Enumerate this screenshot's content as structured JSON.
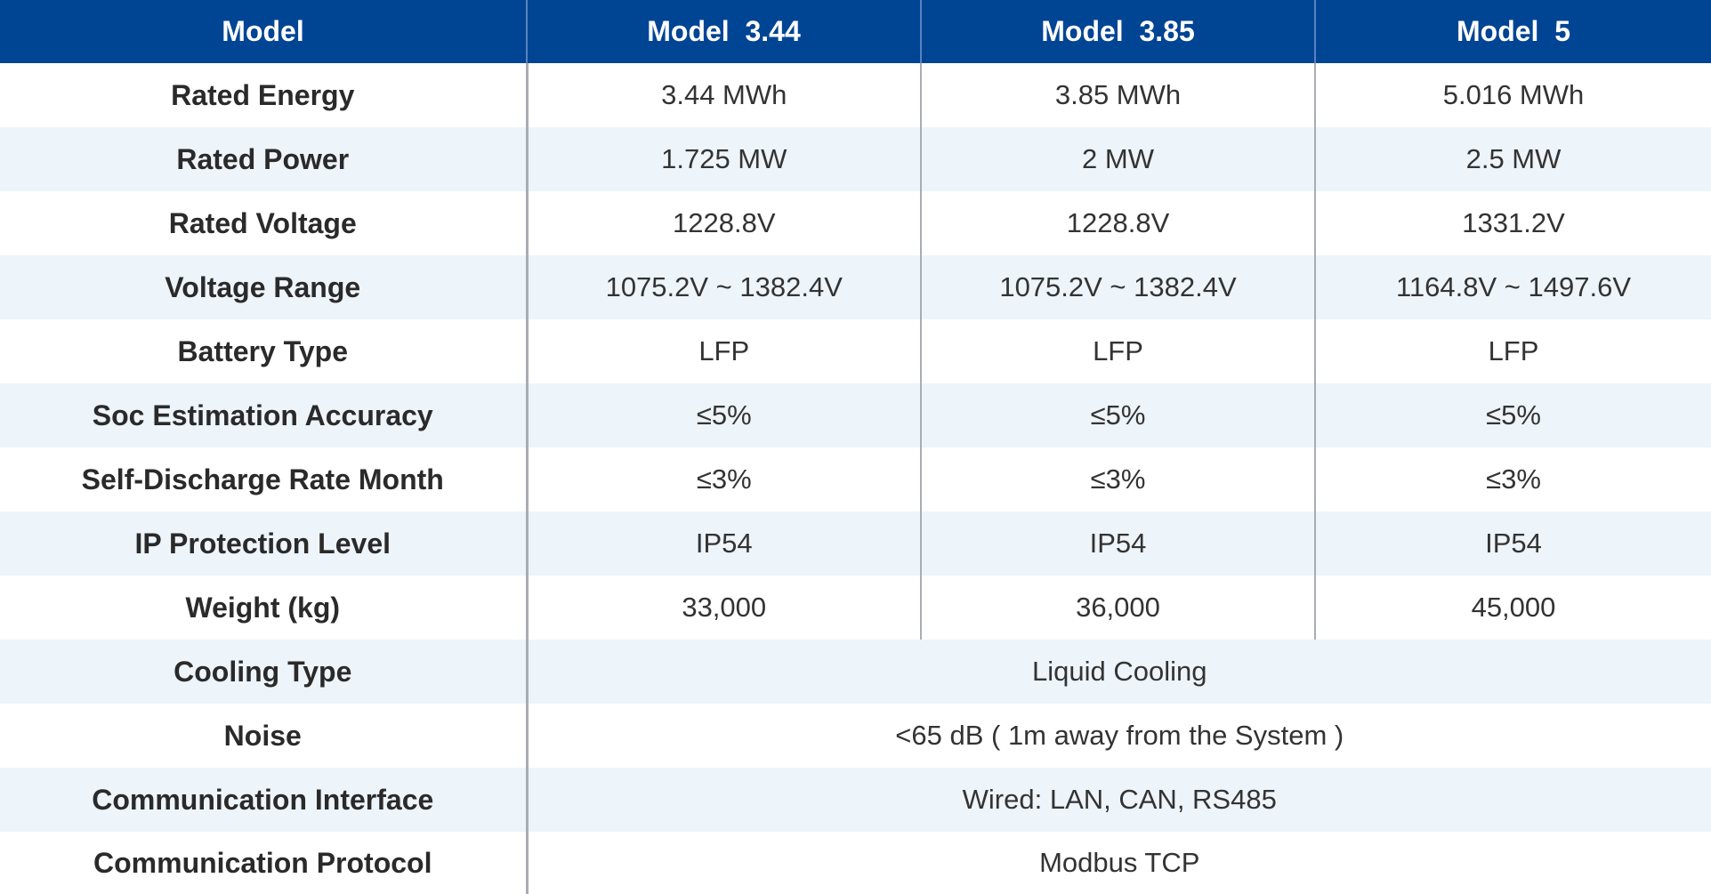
{
  "header": {
    "label": "Model",
    "models": [
      "Model  3.44",
      "Model  3.85",
      "Model  5"
    ]
  },
  "rows": [
    {
      "label": "Rated Energy",
      "values": [
        "3.44 MWh",
        "3.85 MWh",
        "5.016 MWh"
      ]
    },
    {
      "label": "Rated Power",
      "values": [
        "1.725 MW",
        "2 MW",
        "2.5 MW"
      ]
    },
    {
      "label": "Rated Voltage",
      "values": [
        "1228.8V",
        "1228.8V",
        "1331.2V"
      ]
    },
    {
      "label": "Voltage Range",
      "values": [
        "1075.2V ~ 1382.4V",
        "1075.2V ~ 1382.4V",
        "1164.8V ~ 1497.6V"
      ]
    },
    {
      "label": "Battery Type",
      "values": [
        "LFP",
        "LFP",
        "LFP"
      ]
    },
    {
      "label": "Soc Estimation Accuracy",
      "values": [
        "≤5%",
        "≤5%",
        "≤5%"
      ]
    },
    {
      "label": "Self-Discharge Rate Month",
      "values": [
        "≤3%",
        "≤3%",
        "≤3%"
      ]
    },
    {
      "label": "IP Protection Level",
      "values": [
        "IP54",
        "IP54",
        "IP54"
      ]
    },
    {
      "label": "Weight (kg)",
      "values": [
        "33,000",
        "36,000",
        "45,000"
      ]
    },
    {
      "label": "Cooling Type",
      "shared": "Liquid Cooling"
    },
    {
      "label": "Noise",
      "shared": "<65 dB ( 1m away from the System )"
    },
    {
      "label": "Communication Interface",
      "shared": "Wired: LAN, CAN, RS485"
    },
    {
      "label": "Communication Protocol",
      "shared": "Modbus TCP"
    }
  ],
  "colors": {
    "header_background": "#004494",
    "header_text": "#ffffff",
    "stripe_background": "#edf4fa",
    "grid_line": "#a9adb3"
  }
}
